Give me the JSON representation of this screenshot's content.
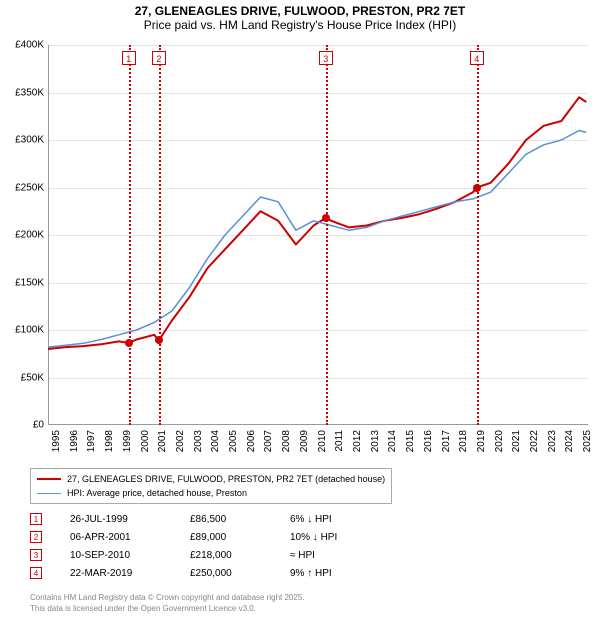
{
  "title": {
    "line1": "27, GLENEAGLES DRIVE, FULWOOD, PRESTON, PR2 7ET",
    "line2": "Price paid vs. HM Land Registry's House Price Index (HPI)"
  },
  "chart": {
    "type": "line",
    "background_color": "#ffffff",
    "grid_color": "#e5e5e5",
    "axis_color": "#999999",
    "x_domain": [
      1995,
      2025.5
    ],
    "y_domain": [
      0,
      400000
    ],
    "y_ticks": [
      0,
      50000,
      100000,
      150000,
      200000,
      250000,
      300000,
      350000,
      400000
    ],
    "y_tick_labels": [
      "£0",
      "£50K",
      "£100K",
      "£150K",
      "£200K",
      "£250K",
      "£300K",
      "£350K",
      "£400K"
    ],
    "x_ticks": [
      1995,
      1996,
      1997,
      1998,
      1999,
      2000,
      2001,
      2002,
      2003,
      2004,
      2005,
      2006,
      2007,
      2008,
      2009,
      2010,
      2011,
      2012,
      2013,
      2014,
      2015,
      2016,
      2017,
      2018,
      2019,
      2020,
      2021,
      2022,
      2023,
      2024,
      2025
    ],
    "x_tick_labels": [
      "1995",
      "1996",
      "1997",
      "1998",
      "1999",
      "2000",
      "2001",
      "2002",
      "2003",
      "2004",
      "2005",
      "2006",
      "2007",
      "2008",
      "2009",
      "2010",
      "2011",
      "2012",
      "2013",
      "2014",
      "2015",
      "2016",
      "2017",
      "2018",
      "2019",
      "2020",
      "2021",
      "2022",
      "2023",
      "2024",
      "2025"
    ],
    "label_fontsize": 10,
    "title_fontsize": 12,
    "series": [
      {
        "name": "property",
        "label": "27, GLENEAGLES DRIVE, FULWOOD, PRESTON, PR2 7ET (detached house)",
        "color": "#cc0000",
        "line_width": 2,
        "data": [
          [
            1995,
            80000
          ],
          [
            1996,
            82000
          ],
          [
            1997,
            83000
          ],
          [
            1998,
            85000
          ],
          [
            1999,
            88000
          ],
          [
            1999.56,
            86500
          ],
          [
            2000,
            90000
          ],
          [
            2001,
            95000
          ],
          [
            2001.26,
            89000
          ],
          [
            2002,
            110000
          ],
          [
            2003,
            135000
          ],
          [
            2004,
            165000
          ],
          [
            2005,
            185000
          ],
          [
            2006,
            205000
          ],
          [
            2007,
            225000
          ],
          [
            2008,
            215000
          ],
          [
            2009,
            190000
          ],
          [
            2010,
            210000
          ],
          [
            2010.69,
            218000
          ],
          [
            2011,
            215000
          ],
          [
            2012,
            208000
          ],
          [
            2013,
            210000
          ],
          [
            2014,
            215000
          ],
          [
            2015,
            218000
          ],
          [
            2016,
            222000
          ],
          [
            2017,
            228000
          ],
          [
            2018,
            235000
          ],
          [
            2019,
            245000
          ],
          [
            2019.22,
            250000
          ],
          [
            2020,
            255000
          ],
          [
            2021,
            275000
          ],
          [
            2022,
            300000
          ],
          [
            2023,
            315000
          ],
          [
            2024,
            320000
          ],
          [
            2025,
            345000
          ],
          [
            2025.4,
            340000
          ]
        ]
      },
      {
        "name": "hpi",
        "label": "HPI: Average price, detached house, Preston",
        "color": "#5b8fd6",
        "line_width": 1.5,
        "data": [
          [
            1995,
            82000
          ],
          [
            1996,
            84000
          ],
          [
            1997,
            86000
          ],
          [
            1998,
            90000
          ],
          [
            1999,
            95000
          ],
          [
            2000,
            100000
          ],
          [
            2001,
            108000
          ],
          [
            2002,
            120000
          ],
          [
            2003,
            145000
          ],
          [
            2004,
            175000
          ],
          [
            2005,
            200000
          ],
          [
            2006,
            220000
          ],
          [
            2007,
            240000
          ],
          [
            2008,
            235000
          ],
          [
            2009,
            205000
          ],
          [
            2010,
            215000
          ],
          [
            2011,
            210000
          ],
          [
            2012,
            205000
          ],
          [
            2013,
            208000
          ],
          [
            2014,
            215000
          ],
          [
            2015,
            220000
          ],
          [
            2016,
            225000
          ],
          [
            2017,
            230000
          ],
          [
            2018,
            235000
          ],
          [
            2019,
            238000
          ],
          [
            2020,
            245000
          ],
          [
            2021,
            265000
          ],
          [
            2022,
            285000
          ],
          [
            2023,
            295000
          ],
          [
            2024,
            300000
          ],
          [
            2025,
            310000
          ],
          [
            2025.4,
            308000
          ]
        ]
      }
    ],
    "markers": [
      {
        "n": "1",
        "x": 1999.56,
        "y": 86500,
        "color": "#cc0000"
      },
      {
        "n": "2",
        "x": 2001.26,
        "y": 89000,
        "color": "#cc0000"
      },
      {
        "n": "3",
        "x": 2010.69,
        "y": 218000,
        "color": "#cc0000"
      },
      {
        "n": "4",
        "x": 2019.22,
        "y": 250000,
        "color": "#cc0000"
      }
    ]
  },
  "legend": {
    "items": [
      {
        "color": "#cc0000",
        "width": 2,
        "label": "27, GLENEAGLES DRIVE, FULWOOD, PRESTON, PR2 7ET (detached house)"
      },
      {
        "color": "#5b8fd6",
        "width": 1.5,
        "label": "HPI: Average price, detached house, Preston"
      }
    ]
  },
  "sales": [
    {
      "n": "1",
      "color": "#cc0000",
      "date": "26-JUL-1999",
      "price": "£86,500",
      "hpi": "6% ↓ HPI"
    },
    {
      "n": "2",
      "color": "#cc0000",
      "date": "06-APR-2001",
      "price": "£89,000",
      "hpi": "10% ↓ HPI"
    },
    {
      "n": "3",
      "color": "#cc0000",
      "date": "10-SEP-2010",
      "price": "£218,000",
      "hpi": "≈ HPI"
    },
    {
      "n": "4",
      "color": "#cc0000",
      "date": "22-MAR-2019",
      "price": "£250,000",
      "hpi": "9% ↑ HPI"
    }
  ],
  "footer": {
    "line1": "Contains HM Land Registry data © Crown copyright and database right 2025.",
    "line2": "This data is licensed under the Open Government Licence v3.0."
  }
}
